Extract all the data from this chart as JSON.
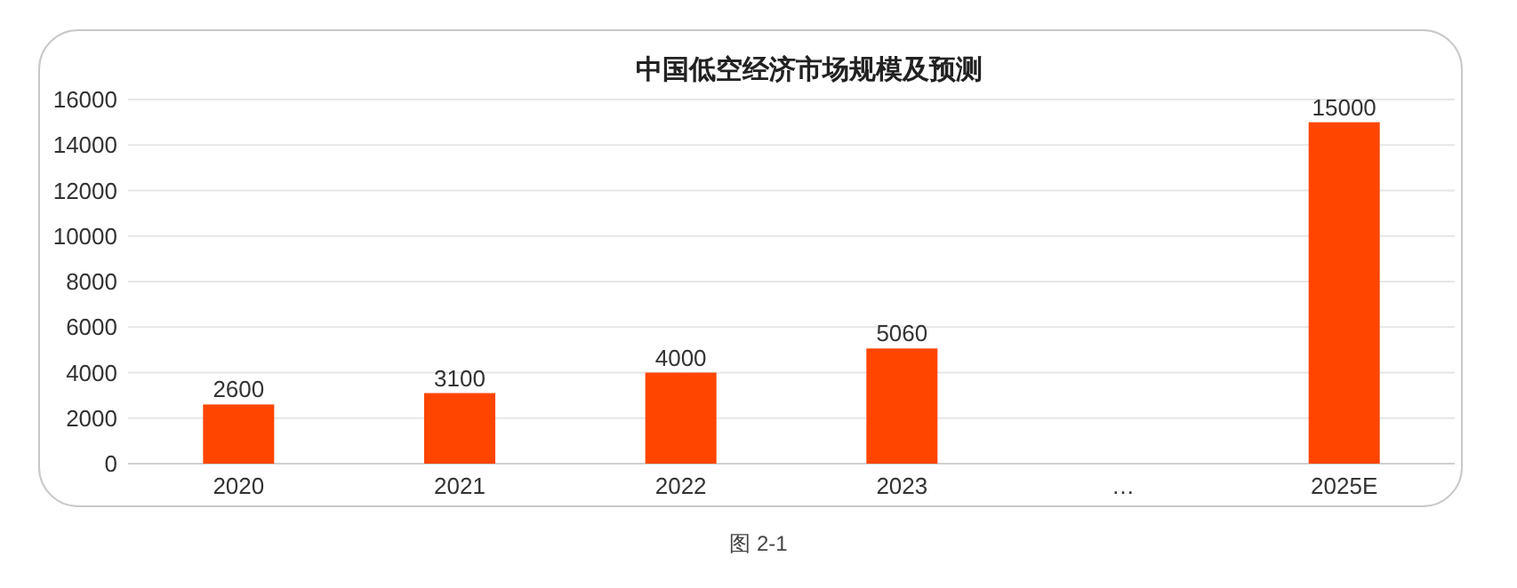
{
  "chart_data": {
    "type": "bar",
    "title": "中国低空经济市场规模及预测",
    "categories": [
      "2020",
      "2021",
      "2022",
      "2023",
      "…",
      "2025E"
    ],
    "values": [
      2600,
      3100,
      4000,
      5060,
      null,
      15000
    ],
    "color": "#ff4500",
    "ylim": [
      0,
      16000
    ],
    "yticks": [
      0,
      2000,
      4000,
      6000,
      8000,
      10000,
      12000,
      14000,
      16000
    ],
    "grid": "y",
    "data_labels": true,
    "annotations": [
      "图 2-1"
    ]
  }
}
